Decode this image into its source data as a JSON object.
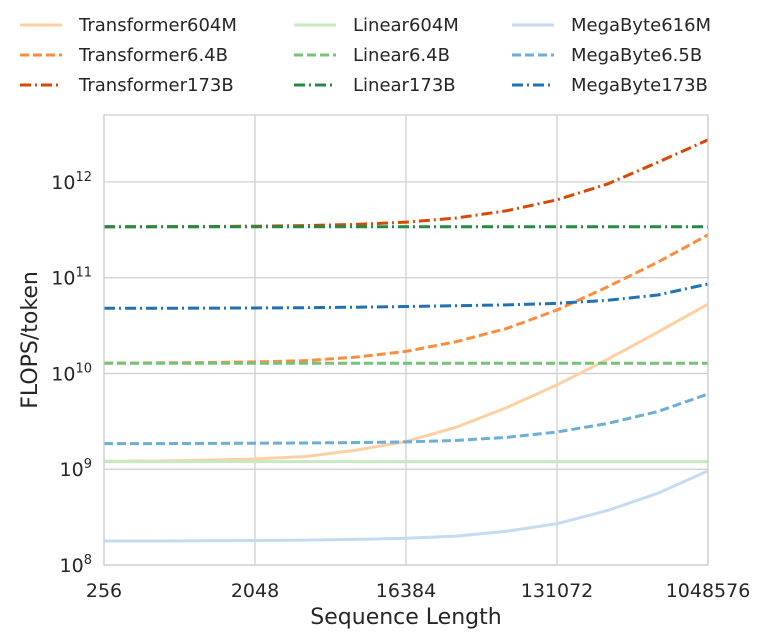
{
  "chart_data": {
    "type": "line",
    "xlabel": "Sequence Length",
    "ylabel": "FLOPS/token",
    "x_scale": "log2",
    "y_scale": "log10",
    "xlim": [
      256,
      1048576
    ],
    "ylim": [
      100000000,
      5000000000000
    ],
    "x_ticks": [
      "256",
      "2048",
      "16384",
      "131072",
      "1048576"
    ],
    "x_tick_values": [
      256,
      2048,
      16384,
      131072,
      1048576
    ],
    "y_ticks": [
      {
        "value": 100000000,
        "base": "10",
        "exp": "8"
      },
      {
        "value": 1000000000,
        "base": "10",
        "exp": "9"
      },
      {
        "value": 10000000000,
        "base": "10",
        "exp": "10"
      },
      {
        "value": 100000000000,
        "base": "10",
        "exp": "11"
      },
      {
        "value": 1000000000000,
        "base": "10",
        "exp": "12"
      }
    ],
    "grid": true,
    "legend_position": "top",
    "x": [
      256,
      512,
      1024,
      2048,
      4096,
      8192,
      16384,
      32768,
      65536,
      131072,
      262144,
      524288,
      1048576
    ],
    "series": [
      {
        "name": "Transformer604M",
        "color": "#fdd0a2",
        "dash": "solid",
        "values": [
          1210000000,
          1220000000,
          1240000000,
          1280000000,
          1360000000,
          1580000000,
          1950000000,
          2750000000,
          4400000000,
          7600000000,
          14000000000,
          27000000000,
          53000000000
        ]
      },
      {
        "name": "Transformer6.4B",
        "color": "#fd8d3c",
        "dash": "dashed",
        "values": [
          12800000000,
          12900000000,
          13000000000,
          13200000000,
          13600000000,
          14800000000,
          17000000000,
          21500000000,
          29500000000,
          46000000000,
          80000000000,
          145000000000,
          280000000000
        ]
      },
      {
        "name": "Transformer173B",
        "color": "#d94801",
        "dash": "dashdot",
        "values": [
          340000000000,
          341000000000,
          342000000000,
          345000000000,
          350000000000,
          360000000000,
          380000000000,
          420000000000,
          500000000000,
          650000000000,
          950000000000,
          1600000000000,
          2750000000000
        ]
      },
      {
        "name": "Linear604M",
        "color": "#c7e9c0",
        "dash": "solid",
        "values": [
          1200000000,
          1200000000,
          1200000000,
          1200000000,
          1200000000,
          1200000000,
          1200000000,
          1200000000,
          1200000000,
          1200000000,
          1200000000,
          1200000000,
          1200000000
        ]
      },
      {
        "name": "Linear6.4B",
        "color": "#74c476",
        "dash": "dashed",
        "values": [
          12800000000,
          12800000000,
          12800000000,
          12800000000,
          12800000000,
          12800000000,
          12800000000,
          12800000000,
          12800000000,
          12800000000,
          12800000000,
          12800000000,
          12800000000
        ]
      },
      {
        "name": "Linear173B",
        "color": "#238b45",
        "dash": "dashdot",
        "values": [
          340000000000,
          340000000000,
          340000000000,
          340000000000,
          340000000000,
          340000000000,
          340000000000,
          340000000000,
          340000000000,
          340000000000,
          340000000000,
          340000000000,
          340000000000
        ]
      },
      {
        "name": "MegaByte616M",
        "color": "#c6dbef",
        "dash": "solid",
        "values": [
          178000000,
          178000000,
          179000000,
          180000000,
          182000000,
          185000000,
          190000000,
          200000000,
          225000000,
          270000000,
          370000000,
          560000000,
          960000000
        ]
      },
      {
        "name": "MegaByte6.5B",
        "color": "#6baed6",
        "dash": "dashed",
        "values": [
          1850000000,
          1850000000,
          1860000000,
          1870000000,
          1880000000,
          1900000000,
          1930000000,
          2000000000,
          2150000000,
          2450000000,
          3000000000,
          4000000000,
          6100000000
        ]
      },
      {
        "name": "MegaByte173B",
        "color": "#2171b5",
        "dash": "dashdot",
        "values": [
          48000000000,
          48000000000,
          48100000000,
          48300000000,
          48600000000,
          49200000000,
          50000000000,
          51000000000,
          52000000000,
          54000000000,
          58000000000,
          66000000000,
          86000000000
        ]
      }
    ]
  }
}
